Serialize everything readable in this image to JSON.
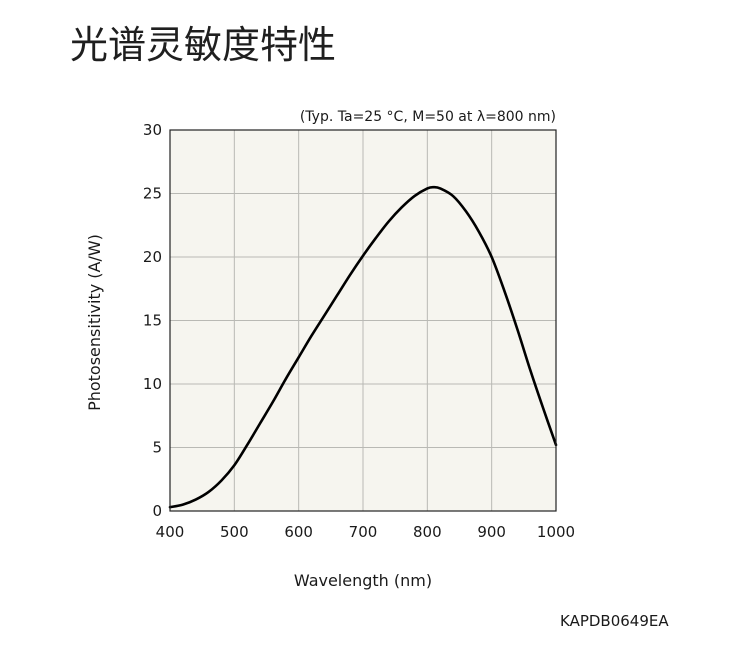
{
  "title": "光谱灵敏度特性",
  "figure_code": "KAPDB0649EA",
  "chart_data": {
    "type": "line",
    "subtitle": "(Typ. Ta=25 °C, M=50 at λ=800 nm)",
    "xlabel": "Wavelength (nm)",
    "ylabel": "Photosensitivity (A/W)",
    "xlim": [
      400,
      1000
    ],
    "ylim": [
      0,
      30
    ],
    "xticks": [
      400,
      500,
      600,
      700,
      800,
      900,
      1000
    ],
    "yticks": [
      0,
      5,
      10,
      15,
      20,
      25,
      30
    ],
    "grid": true,
    "plot_background": "#f6f5ef",
    "line_color": "#000000",
    "series": [
      {
        "x": [
          400,
          420,
          440,
          460,
          480,
          500,
          520,
          540,
          560,
          580,
          600,
          620,
          640,
          660,
          680,
          700,
          720,
          740,
          760,
          780,
          800,
          810,
          820,
          840,
          860,
          880,
          900,
          920,
          940,
          960,
          980,
          1000
        ],
        "y": [
          0.3,
          0.5,
          0.9,
          1.5,
          2.4,
          3.6,
          5.2,
          6.9,
          8.6,
          10.4,
          12.1,
          13.8,
          15.4,
          17.0,
          18.6,
          20.1,
          21.5,
          22.8,
          23.9,
          24.8,
          25.4,
          25.5,
          25.4,
          24.8,
          23.6,
          22.0,
          20.0,
          17.3,
          14.3,
          11.1,
          8.1,
          5.2
        ]
      }
    ]
  }
}
